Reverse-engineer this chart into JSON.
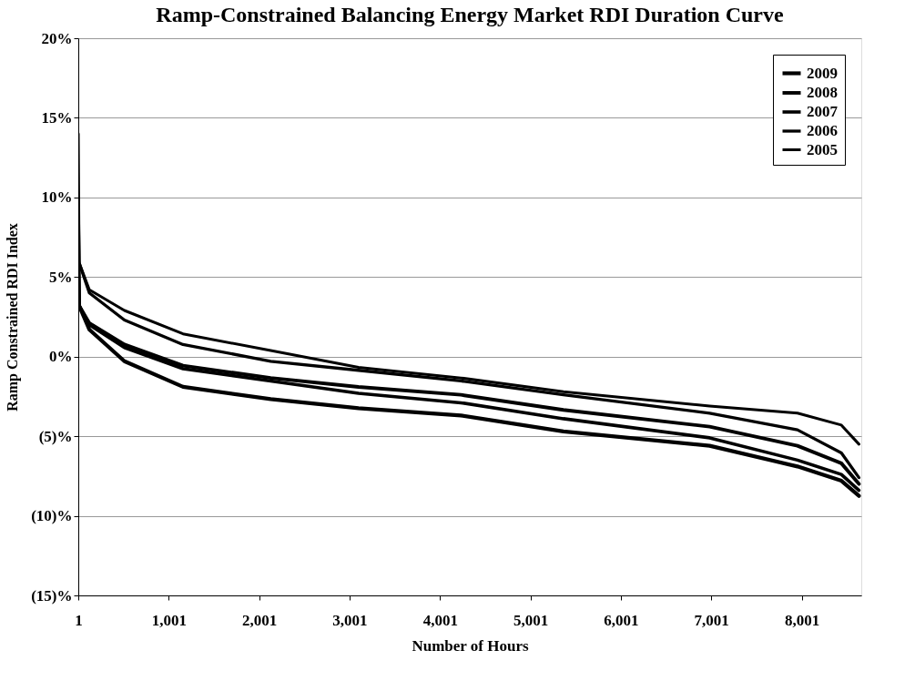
{
  "chart_data": {
    "type": "line",
    "title": "Ramp-Constrained Balancing Energy Market RDI Duration Curve",
    "xlabel": "Number of Hours",
    "ylabel": "Ramp Constrained RDI Index",
    "x": [
      1,
      10,
      123,
      511,
      1159,
      2129,
      3100,
      4233,
      5366,
      6983,
      7954,
      8440,
      8634
    ],
    "series": [
      {
        "name": "2009",
        "color": "#000000",
        "values": [
          6,
          3.2,
          1.7,
          -0.29,
          -1.9,
          -2.67,
          -3.24,
          -3.7,
          -4.7,
          -5.6,
          -6.9,
          -7.8,
          -8.75
        ]
      },
      {
        "name": "2008",
        "color": "#000000",
        "values": [
          8,
          3.2,
          2.1,
          0.76,
          -0.57,
          -1.34,
          -1.9,
          -2.4,
          -3.35,
          -4.4,
          -5.6,
          -6.7,
          -8.0
        ]
      },
      {
        "name": "2007",
        "color": "#000000",
        "values": [
          7,
          3.2,
          2.0,
          0.57,
          -0.76,
          -1.53,
          -2.3,
          -2.9,
          -3.9,
          -5.1,
          -6.5,
          -7.4,
          -8.4
        ]
      },
      {
        "name": "2006",
        "color": "#000000",
        "values": [
          10,
          5.9,
          4.0,
          2.3,
          0.76,
          -0.29,
          -0.86,
          -1.53,
          -2.4,
          -3.55,
          -4.6,
          -6.05,
          -7.6
        ]
      },
      {
        "name": "2005",
        "color": "#000000",
        "values": [
          14,
          5.9,
          4.2,
          2.9,
          1.43,
          0.38,
          -0.67,
          -1.34,
          -2.2,
          -3.1,
          -3.55,
          -4.3,
          -5.5
        ]
      }
    ],
    "xlim": [
      1,
      8660
    ],
    "xticks": [
      {
        "value": 1,
        "label": "1"
      },
      {
        "value": 1001,
        "label": "1,001"
      },
      {
        "value": 2001,
        "label": "2,001"
      },
      {
        "value": 3001,
        "label": "3,001"
      },
      {
        "value": 4001,
        "label": "4,001"
      },
      {
        "value": 5001,
        "label": "5,001"
      },
      {
        "value": 6001,
        "label": "6,001"
      },
      {
        "value": 7001,
        "label": "7,001"
      },
      {
        "value": 8001,
        "label": "8,001"
      }
    ],
    "ylim": [
      -15,
      20
    ],
    "yticks": [
      {
        "value": -15,
        "label": "(15)%"
      },
      {
        "value": -10,
        "label": "(10)%"
      },
      {
        "value": -5,
        "label": "(5)%"
      },
      {
        "value": 0,
        "label": "0%"
      },
      {
        "value": 5,
        "label": "5%"
      },
      {
        "value": 10,
        "label": "10%"
      },
      {
        "value": 15,
        "label": "15%"
      },
      {
        "value": 20,
        "label": "20%"
      }
    ],
    "grid": "y",
    "legend": "top right",
    "line_style": "solid",
    "marker": "none"
  }
}
